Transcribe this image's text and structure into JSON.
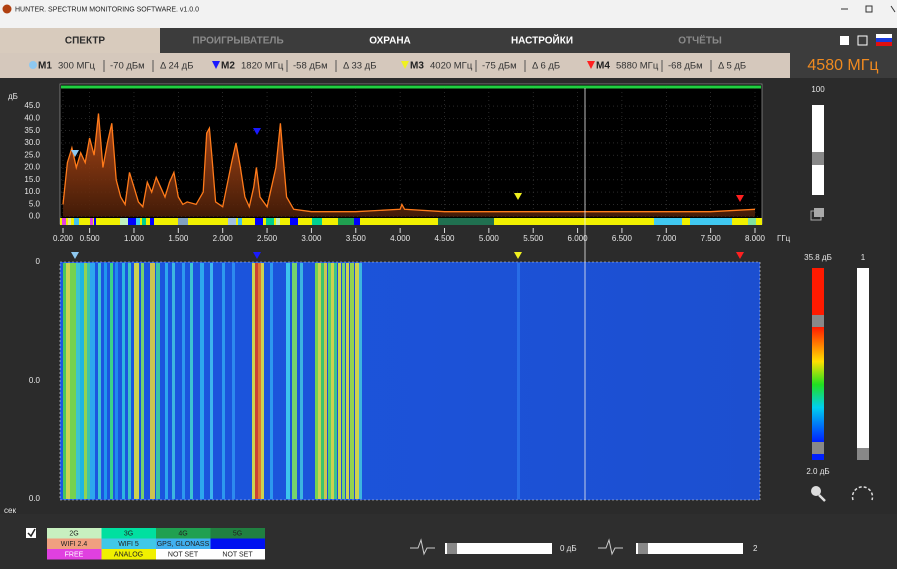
{
  "window": {
    "title": "HUNTER. SPECTRUM MONITORING SOFTWARE. v1.0.0"
  },
  "tabs": [
    "СПЕКТР",
    "ПРОИГРЫВАТЕЛЬ",
    "ОХРАНА",
    "НАСТРОЙКИ",
    "ОТЧЁТЫ"
  ],
  "markers": [
    {
      "name": "M1",
      "frequency": "300 МГц",
      "level": "-70 дБм",
      "delta": "Δ 24 дБ",
      "color": "#8ec8f0"
    },
    {
      "name": "M2",
      "frequency": "1820 МГц",
      "level": "-58 дБм",
      "delta": "Δ 33 дБ",
      "color": "#1a1aff"
    },
    {
      "name": "M3",
      "frequency": "4020 МГц",
      "level": "-75 дБм",
      "delta": "Δ 6 дБ",
      "color": "#f0f020"
    },
    {
      "name": "M4",
      "frequency": "5880 МГц",
      "level": "-68 дБм",
      "delta": "Δ 5 дБ",
      "color": "#ff2020"
    }
  ],
  "center_frequency": "4580 МГц",
  "spectrum": {
    "y_unit": "дБ",
    "x_unit": "ГГц",
    "color": "#ff7a1a",
    "xlim": [
      0.2,
      8.0
    ],
    "ylim": [
      -3,
      54
    ],
    "xticks": [
      {
        "value": 0.2,
        "label": "0.200"
      },
      {
        "value": 0.5,
        "label": "0.500"
      },
      {
        "value": 1,
        "label": "1.000"
      },
      {
        "value": 1.5,
        "label": "1.500"
      },
      {
        "value": 2,
        "label": "2.000"
      },
      {
        "value": 2.5,
        "label": "2.500"
      },
      {
        "value": 3,
        "label": "3.000"
      },
      {
        "value": 3.5,
        "label": "3.500"
      },
      {
        "value": 4,
        "label": "4.000"
      },
      {
        "value": 4.5,
        "label": "4.500"
      },
      {
        "value": 5,
        "label": "5.000"
      },
      {
        "value": 5.5,
        "label": "5.500"
      },
      {
        "value": 6,
        "label": "6.000"
      },
      {
        "value": 6.5,
        "label": "6.500"
      },
      {
        "value": 7,
        "label": "7.000"
      },
      {
        "value": 7.5,
        "label": "7.500"
      },
      {
        "value": 8,
        "label": "8.000"
      }
    ],
    "yticks": [
      {
        "value": 0,
        "label": "0.0"
      },
      {
        "value": 5,
        "label": "5.0"
      },
      {
        "value": 10,
        "label": "10.0"
      },
      {
        "value": 15,
        "label": "15.0"
      },
      {
        "value": 20,
        "label": "20.0"
      },
      {
        "value": 25,
        "label": "25.0"
      },
      {
        "value": 30,
        "label": "30.0"
      },
      {
        "value": 35,
        "label": "35.0"
      },
      {
        "value": 40,
        "label": "40.0"
      },
      {
        "value": 45,
        "label": "45.0"
      }
    ],
    "x": [
      0.2,
      0.25,
      0.3,
      0.35,
      0.4,
      0.45,
      0.5,
      0.55,
      0.6,
      0.65,
      0.7,
      0.75,
      0.8,
      0.85,
      0.9,
      0.95,
      1.0,
      1.05,
      1.1,
      1.15,
      1.2,
      1.25,
      1.3,
      1.35,
      1.4,
      1.45,
      1.5,
      1.55,
      1.6,
      1.7,
      1.78,
      1.82,
      1.85,
      1.88,
      1.92,
      2.0,
      2.1,
      2.15,
      2.2,
      2.25,
      2.3,
      2.35,
      2.38,
      2.42,
      2.5,
      2.6,
      2.65,
      2.68,
      2.72,
      2.8,
      3.0,
      3.5,
      4.0,
      4.02,
      4.05,
      4.5,
      5.0,
      5.5,
      6.0,
      7.0,
      7.5,
      8.0
    ],
    "values": [
      5,
      22,
      28,
      20,
      26,
      22,
      32,
      25,
      42,
      20,
      30,
      38,
      15,
      8,
      5,
      18,
      12,
      6,
      4,
      14,
      10,
      16,
      12,
      8,
      14,
      18,
      8,
      5,
      6,
      5,
      10,
      34,
      36,
      24,
      6,
      4,
      22,
      30,
      20,
      8,
      4,
      12,
      20,
      8,
      4,
      20,
      38,
      25,
      8,
      3,
      2,
      2,
      3,
      5,
      3,
      2,
      2,
      2,
      2,
      2,
      2,
      3
    ]
  },
  "waterfall": {
    "y_unit": "сек",
    "yticks": [
      "0",
      "0.0",
      "0.0"
    ]
  },
  "right_panel": {
    "gain": "100",
    "color_max": "35.8 дБ",
    "color_min": "2.0 дБ",
    "speed": "1"
  },
  "legend": {
    "rows": [
      [
        "2G",
        "3G",
        "4G",
        "5G"
      ],
      [
        "WIFI 2.4",
        "WIFI 5",
        "GPS, GLONASS"
      ],
      [
        "FREE",
        "ANALOG",
        "NOT SET",
        "NOT SET"
      ]
    ]
  },
  "controls": {
    "threshold": "0 дБ",
    "averaging": "2"
  }
}
